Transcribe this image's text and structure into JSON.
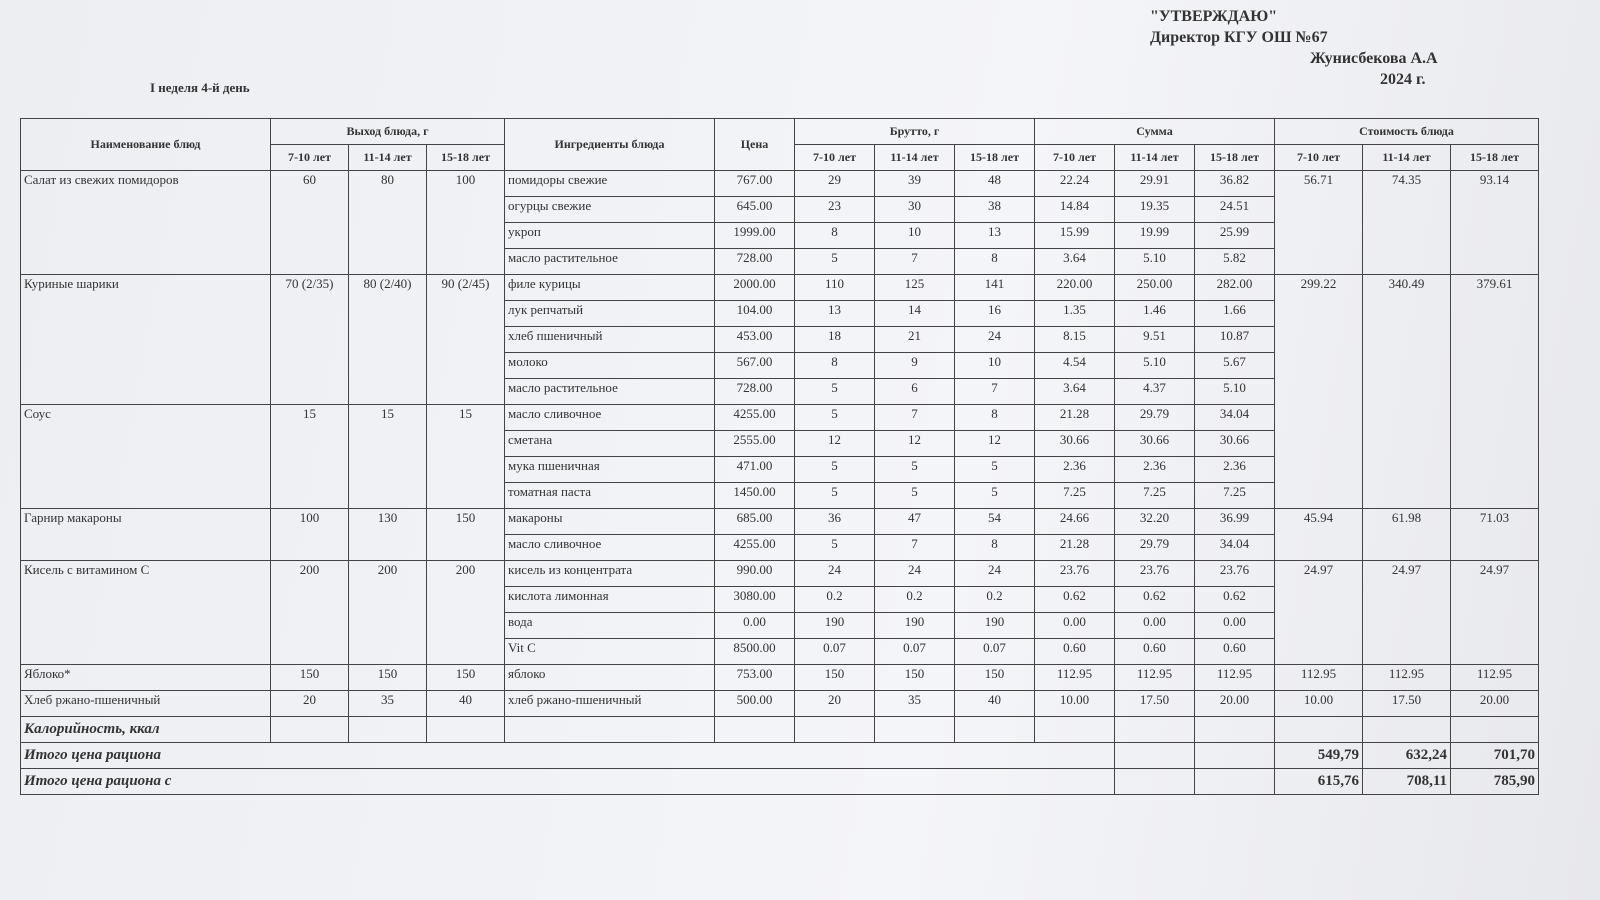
{
  "approval": {
    "title": "\"УТВЕРЖДАЮ\"",
    "position": "Директор КГУ ОШ №67",
    "name": "Жунисбекова А.А",
    "date": "2024 г."
  },
  "subtitle": "I неделя 4-й день",
  "table": {
    "columns": {
      "name": "Наименование блюд",
      "output": "Выход блюда, г",
      "ingredients": "Ингредиенты блюда",
      "price": "Цена",
      "gross": "Брутто, г",
      "sum": "Сумма",
      "cost": "Стоимость блюда",
      "ages": [
        "7-10 лет",
        "11-14 лет",
        "15-18 лет"
      ]
    },
    "dishes": [
      {
        "name": "Салат из свежих помидоров",
        "output": [
          "60",
          "80",
          "100"
        ],
        "cost": [
          "56.71",
          "74.35",
          "93.14"
        ],
        "ingredients": [
          [
            "помидоры свежие",
            "767.00",
            "29",
            "39",
            "48",
            "22.24",
            "29.91",
            "36.82"
          ],
          [
            "огурцы свежие",
            "645.00",
            "23",
            "30",
            "38",
            "14.84",
            "19.35",
            "24.51"
          ],
          [
            "укроп",
            "1999.00",
            "8",
            "10",
            "13",
            "15.99",
            "19.99",
            "25.99"
          ],
          [
            "масло растительное",
            "728.00",
            "5",
            "7",
            "8",
            "3.64",
            "5.10",
            "5.82"
          ]
        ]
      },
      {
        "name": "Куриные шарики",
        "output": [
          "70 (2/35)",
          "80 (2/40)",
          "90 (2/45)"
        ],
        "cost": [
          "299.22",
          "340.49",
          "379.61"
        ],
        "ingredients": [
          [
            "филе курицы",
            "2000.00",
            "110",
            "125",
            "141",
            "220.00",
            "250.00",
            "282.00"
          ],
          [
            "лук репчатый",
            "104.00",
            "13",
            "14",
            "16",
            "1.35",
            "1.46",
            "1.66"
          ],
          [
            "хлеб пшеничный",
            "453.00",
            "18",
            "21",
            "24",
            "8.15",
            "9.51",
            "10.87"
          ],
          [
            "молоко",
            "567.00",
            "8",
            "9",
            "10",
            "4.54",
            "5.10",
            "5.67"
          ],
          [
            "масло растительное",
            "728.00",
            "5",
            "6",
            "7",
            "3.64",
            "4.37",
            "5.10"
          ]
        ]
      },
      {
        "name": "Соус",
        "output": [
          "15",
          "15",
          "15"
        ],
        "ingredients": [
          [
            "масло сливочное",
            "4255.00",
            "5",
            "7",
            "8",
            "21.28",
            "29.79",
            "34.04"
          ],
          [
            "сметана",
            "2555.00",
            "12",
            "12",
            "12",
            "30.66",
            "30.66",
            "30.66"
          ],
          [
            "мука пшеничная",
            "471.00",
            "5",
            "5",
            "5",
            "2.36",
            "2.36",
            "2.36"
          ],
          [
            "томатная паста",
            "1450.00",
            "5",
            "5",
            "5",
            "7.25",
            "7.25",
            "7.25"
          ]
        ]
      },
      {
        "name": "Гарнир  макароны",
        "output": [
          "100",
          "130",
          "150"
        ],
        "cost": [
          "45.94",
          "61.98",
          "71.03"
        ],
        "ingredients": [
          [
            "макароны",
            "685.00",
            "36",
            "47",
            "54",
            "24.66",
            "32.20",
            "36.99"
          ],
          [
            "масло сливочное",
            "4255.00",
            "5",
            "7",
            "8",
            "21.28",
            "29.79",
            "34.04"
          ]
        ]
      },
      {
        "name": "Кисель с витамином С",
        "output": [
          "200",
          "200",
          "200"
        ],
        "cost": [
          "24.97",
          "24.97",
          "24.97"
        ],
        "ingredients": [
          [
            "кисель из концентрата",
            "990.00",
            "24",
            "24",
            "24",
            "23.76",
            "23.76",
            "23.76"
          ],
          [
            "кислота лимонная",
            "3080.00",
            "0.2",
            "0.2",
            "0.2",
            "0.62",
            "0.62",
            "0.62"
          ],
          [
            "вода",
            "0.00",
            "190",
            "190",
            "190",
            "0.00",
            "0.00",
            "0.00"
          ],
          [
            "Vit C",
            "8500.00",
            "0.07",
            "0.07",
            "0.07",
            "0.60",
            "0.60",
            "0.60"
          ]
        ]
      },
      {
        "name": "Яблоко*",
        "output": [
          "150",
          "150",
          "150"
        ],
        "cost": [
          "112.95",
          "112.95",
          "112.95"
        ],
        "ingredients": [
          [
            "яблоко",
            "753.00",
            "150",
            "150",
            "150",
            "112.95",
            "112.95",
            "112.95"
          ]
        ]
      },
      {
        "name": "Хлеб ржано-пшеничный",
        "output": [
          "20",
          "35",
          "40"
        ],
        "cost": [
          "10.00",
          "17.50",
          "20.00"
        ],
        "ingredients": [
          [
            "хлеб ржано-пшеничный",
            "500.00",
            "20",
            "35",
            "40",
            "10.00",
            "17.50",
            "20.00"
          ]
        ]
      }
    ],
    "calories": "Калорийность, ккал",
    "totals": [
      {
        "label": "Итого цена рациона",
        "values": [
          "549,79",
          "632,24",
          "701,70"
        ]
      },
      {
        "label": "Итого цена рациона с",
        "values": [
          "615,76",
          "708,11",
          "785,90"
        ]
      }
    ]
  }
}
